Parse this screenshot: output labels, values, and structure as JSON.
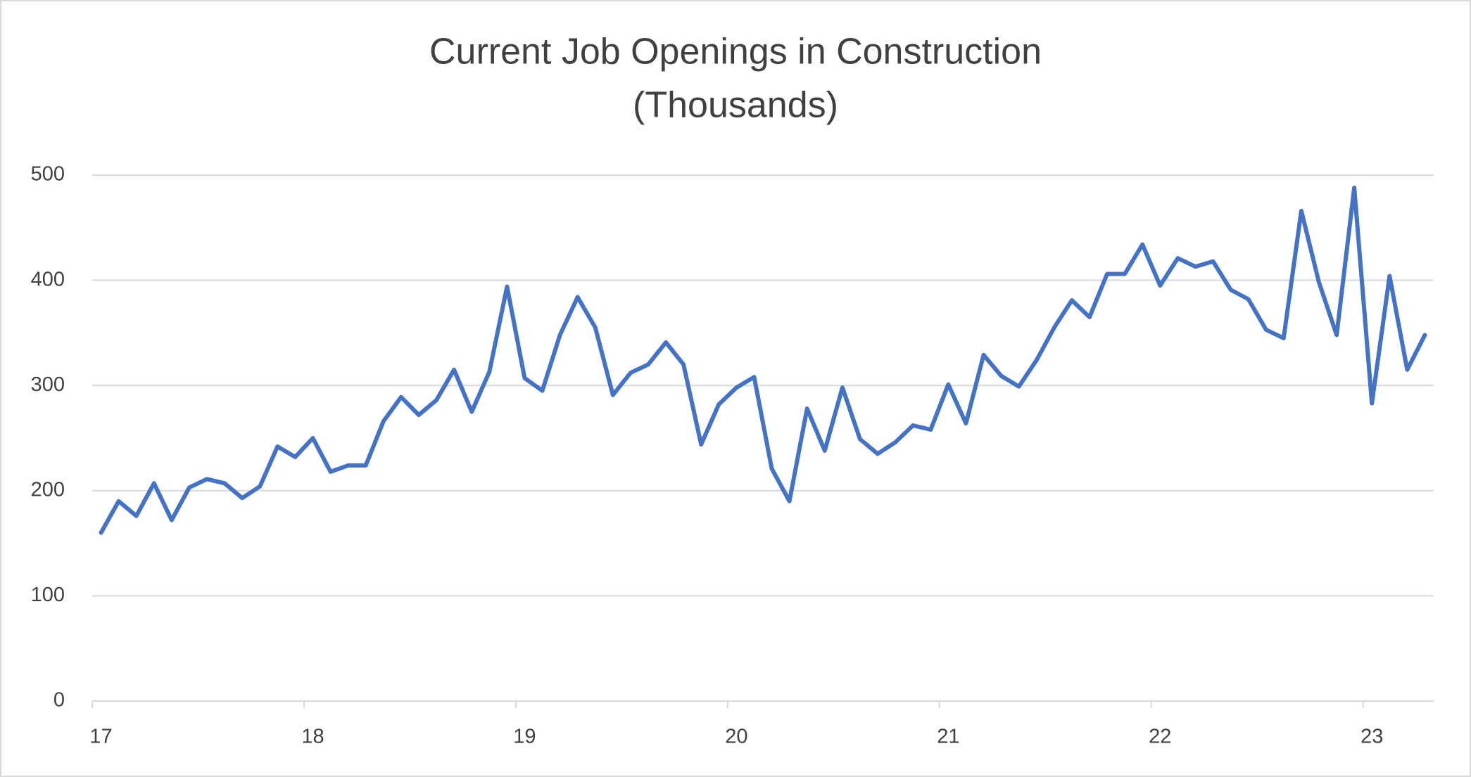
{
  "chart_data": {
    "type": "line",
    "title": [
      "Current Job Openings in Construction",
      "(Thousands)"
    ],
    "categories": [
      "17",
      null,
      null,
      null,
      null,
      null,
      null,
      null,
      null,
      null,
      null,
      null,
      "18",
      null,
      null,
      null,
      null,
      null,
      null,
      null,
      null,
      null,
      null,
      null,
      "19",
      null,
      null,
      null,
      null,
      null,
      null,
      null,
      null,
      null,
      null,
      null,
      "20",
      null,
      null,
      null,
      null,
      null,
      null,
      null,
      null,
      null,
      null,
      null,
      "21",
      null,
      null,
      null,
      null,
      null,
      null,
      null,
      null,
      null,
      null,
      null,
      "22",
      null,
      null,
      null,
      null,
      null,
      null,
      null,
      null,
      null,
      null,
      null,
      "23",
      null,
      null,
      null
    ],
    "series": [
      {
        "name": "Job Openings",
        "color": "#4472c4",
        "values": [
          160,
          190,
          176,
          207,
          172,
          203,
          211,
          207,
          193,
          204,
          242,
          232,
          250,
          218,
          224,
          224,
          266,
          289,
          272,
          286,
          315,
          275,
          313,
          394,
          307,
          295,
          348,
          384,
          355,
          291,
          312,
          320,
          341,
          320,
          244,
          282,
          298,
          308,
          221,
          190,
          278,
          238,
          298,
          249,
          235,
          246,
          262,
          258,
          301,
          264,
          329,
          309,
          299,
          324,
          355,
          381,
          365,
          406,
          406,
          434,
          395,
          421,
          413,
          418,
          391,
          382,
          353,
          345,
          466,
          398,
          348,
          488,
          283,
          404,
          315,
          348
        ]
      }
    ],
    "ylim": [
      0,
      500
    ],
    "yticks": [
      0,
      100,
      200,
      300,
      400,
      500
    ],
    "grid": true
  }
}
